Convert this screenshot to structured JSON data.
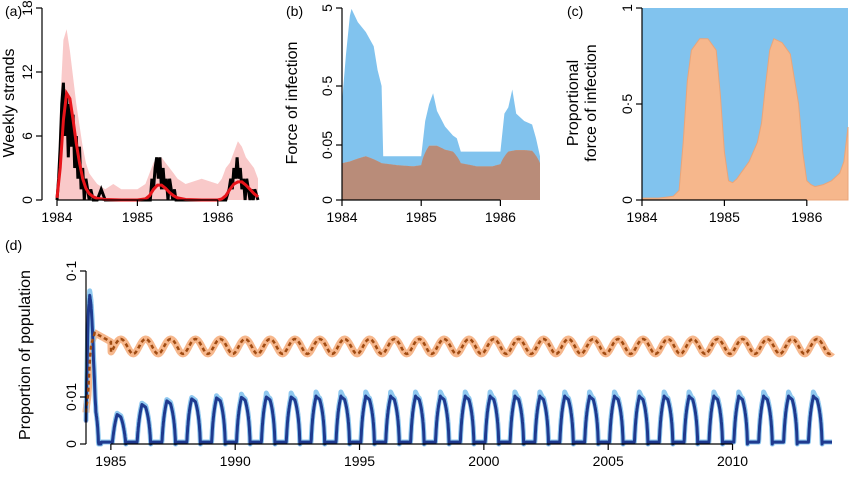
{
  "chart_data": [
    {
      "panel": "a",
      "type": "line",
      "panel_label": "(a)",
      "ylabel": "Weekly strands",
      "xlim": [
        1984,
        1986.5
      ],
      "ylim": [
        0,
        18
      ],
      "x_ticks": [
        1984,
        1985,
        1986
      ],
      "x_tick_labels": [
        "1984",
        "1985",
        "1986"
      ],
      "y_ticks": [
        0,
        6,
        12,
        18
      ],
      "y_tick_labels": [
        "0",
        "6",
        "12",
        "18"
      ],
      "colors": {
        "observed": "#000000",
        "fit": "#e8141a",
        "band": "#f9c9c9"
      },
      "series": [
        {
          "role": "observed",
          "x": [
            1984.0,
            1984.02,
            1984.04,
            1984.06,
            1984.08,
            1984.1,
            1984.12,
            1984.14,
            1984.16,
            1984.18,
            1984.2,
            1984.22,
            1984.24,
            1984.26,
            1984.28,
            1984.3,
            1984.32,
            1984.34,
            1984.36,
            1984.38,
            1984.4,
            1984.42,
            1984.45,
            1984.5,
            1984.55,
            1984.6,
            1984.7,
            1984.8,
            1984.9,
            1985.0,
            1985.1,
            1985.16,
            1985.18,
            1985.2,
            1985.22,
            1985.24,
            1985.26,
            1985.28,
            1985.3,
            1985.32,
            1985.34,
            1985.36,
            1985.38,
            1985.4,
            1985.42,
            1985.44,
            1985.46,
            1985.48,
            1985.5,
            1985.6,
            1985.8,
            1986.0,
            1986.1,
            1986.14,
            1986.16,
            1986.18,
            1986.2,
            1986.22,
            1986.24,
            1986.26,
            1986.28,
            1986.3,
            1986.32,
            1986.34,
            1986.36,
            1986.38,
            1986.4,
            1986.42,
            1986.44,
            1986.46,
            1986.5
          ],
          "values": [
            0,
            2,
            5,
            9,
            11,
            6,
            10,
            4,
            9,
            5,
            8,
            3,
            6,
            2,
            5,
            1,
            3,
            0,
            2,
            1,
            0,
            1,
            0,
            0,
            1,
            0,
            0,
            0,
            0,
            0,
            0,
            0,
            2,
            1,
            3,
            4,
            2,
            4,
            1,
            3,
            1,
            2,
            0,
            2,
            1,
            0,
            1,
            0,
            0,
            0,
            0,
            0,
            0,
            1,
            2,
            1,
            3,
            2,
            4,
            2,
            3,
            1,
            2,
            0,
            2,
            1,
            0,
            1,
            0,
            1,
            0
          ]
        },
        {
          "role": "fit",
          "x": [
            1984.0,
            1984.04,
            1984.08,
            1984.12,
            1984.16,
            1984.2,
            1984.24,
            1984.28,
            1984.32,
            1984.36,
            1984.4,
            1984.45,
            1984.5,
            1984.6,
            1984.8,
            1985.0,
            1985.1,
            1985.15,
            1985.2,
            1985.25,
            1985.3,
            1985.35,
            1985.4,
            1985.45,
            1985.5,
            1985.6,
            1985.8,
            1986.0,
            1986.05,
            1986.1,
            1986.15,
            1986.2,
            1986.25,
            1986.3,
            1986.35,
            1986.4,
            1986.45,
            1986.5
          ],
          "values": [
            0.2,
            3,
            7.5,
            10,
            9.5,
            7.5,
            5.3,
            3.5,
            2,
            1.1,
            0.6,
            0.3,
            0.15,
            0.05,
            0,
            0,
            0.1,
            0.4,
            1,
            1.4,
            1.4,
            1.1,
            0.7,
            0.4,
            0.2,
            0.05,
            0,
            0,
            0.1,
            0.4,
            1,
            1.5,
            1.7,
            1.7,
            1.4,
            1,
            0.6,
            0.3
          ]
        },
        {
          "role": "band-upper",
          "x": [
            1984.0,
            1984.04,
            1984.08,
            1984.12,
            1984.16,
            1984.2,
            1984.24,
            1984.28,
            1984.32,
            1984.36,
            1984.4,
            1984.45,
            1984.5,
            1984.6,
            1984.7,
            1984.8,
            1985.0,
            1985.1,
            1985.15,
            1985.2,
            1985.25,
            1985.3,
            1985.35,
            1985.4,
            1985.45,
            1985.5,
            1985.6,
            1985.8,
            1986.0,
            1986.05,
            1986.1,
            1986.15,
            1986.2,
            1986.25,
            1986.3,
            1986.35,
            1986.4,
            1986.45,
            1986.5
          ],
          "values": [
            1,
            9,
            15,
            16,
            14,
            11.5,
            9,
            7,
            5,
            3.5,
            2.5,
            2,
            1.5,
            1,
            1.5,
            1,
            1,
            1.5,
            2.5,
            3.5,
            4,
            4,
            3.5,
            3,
            2.5,
            2,
            1.5,
            2,
            1.5,
            2,
            3,
            3.5,
            4.5,
            5.5,
            5,
            4,
            3.5,
            3,
            2
          ]
        },
        {
          "role": "band-lower",
          "values": [
            0
          ]
        }
      ]
    },
    {
      "panel": "b",
      "type": "area",
      "panel_label": "(b)",
      "ylabel": "Force of infection",
      "xlim": [
        1984,
        1986.5
      ],
      "ylim_note": "axis shows a nonlinear (square-root-like) scale with ticks 0, 0·05, 0·5, 5",
      "x_ticks": [
        1984,
        1985,
        1986
      ],
      "x_tick_labels": [
        "1984",
        "1985",
        "1986"
      ],
      "y_ticks": [
        0,
        0.05,
        0.5,
        5
      ],
      "y_tick_labels": [
        "0",
        "0·05",
        "0·5",
        "5"
      ],
      "colors": {
        "blue": "#81c3ee",
        "orange": "#f6b78c",
        "overlap": "#b98c79"
      },
      "series": [
        {
          "role": "blue-area",
          "x": [
            1984.0,
            1984.05,
            1984.1,
            1984.12,
            1984.2,
            1984.3,
            1984.4,
            1984.45,
            1984.5,
            1984.52,
            1985.0,
            1985.05,
            1985.1,
            1985.15,
            1985.2,
            1985.3,
            1985.4,
            1985.45,
            1985.5,
            1986.0,
            1986.05,
            1986.1,
            1986.15,
            1986.2,
            1986.3,
            1986.4,
            1986.45,
            1986.5
          ],
          "values": [
            0.3,
            1.5,
            4.2,
            4.9,
            3.6,
            2.8,
            1.9,
            0.9,
            0.5,
            0.02,
            0.02,
            0.15,
            0.28,
            0.4,
            0.22,
            0.12,
            0.08,
            0.07,
            0.03,
            0.03,
            0.2,
            0.25,
            0.45,
            0.2,
            0.15,
            0.13,
            0.07,
            0.02
          ]
        },
        {
          "role": "orange-area",
          "x": [
            1984.0,
            1984.1,
            1984.2,
            1984.3,
            1984.4,
            1984.5,
            1984.7,
            1984.9,
            1985.0,
            1985.1,
            1985.2,
            1985.3,
            1985.4,
            1985.5,
            1985.7,
            1985.9,
            1986.0,
            1986.1,
            1986.2,
            1986.3,
            1986.4,
            1986.5
          ],
          "values": [
            0.01,
            0.012,
            0.016,
            0.02,
            0.015,
            0.01,
            0.008,
            0.007,
            0.008,
            0.047,
            0.047,
            0.035,
            0.03,
            0.01,
            0.007,
            0.007,
            0.009,
            0.03,
            0.034,
            0.034,
            0.032,
            0.01
          ]
        }
      ]
    },
    {
      "panel": "c",
      "type": "area",
      "panel_label": "(c)",
      "ylabel": "Proportional force of infection",
      "ylabel_lines": [
        "Proportional",
        "force of infection"
      ],
      "xlim": [
        1984,
        1986.5
      ],
      "ylim": [
        0,
        1
      ],
      "x_ticks": [
        1984,
        1985,
        1986
      ],
      "x_tick_labels": [
        "1984",
        "1985",
        "1986"
      ],
      "y_ticks": [
        0,
        0.5,
        1
      ],
      "y_tick_labels": [
        "0",
        "0·5",
        "1"
      ],
      "colors": {
        "blue": "#81c3ee",
        "orange": "#f6b78c"
      },
      "series": [
        {
          "role": "orange-share",
          "x": [
            1984.0,
            1984.1,
            1984.2,
            1984.3,
            1984.38,
            1984.45,
            1984.5,
            1984.55,
            1984.6,
            1984.7,
            1984.8,
            1984.9,
            1984.95,
            1985.0,
            1985.05,
            1985.1,
            1985.15,
            1985.2,
            1985.3,
            1985.4,
            1985.45,
            1985.5,
            1985.55,
            1985.6,
            1985.7,
            1985.8,
            1985.9,
            1985.95,
            1986.0,
            1986.05,
            1986.1,
            1986.2,
            1986.3,
            1986.4,
            1986.45,
            1986.5
          ],
          "values": [
            0.01,
            0.01,
            0.01,
            0.015,
            0.02,
            0.05,
            0.3,
            0.62,
            0.78,
            0.84,
            0.84,
            0.78,
            0.55,
            0.25,
            0.1,
            0.09,
            0.11,
            0.14,
            0.2,
            0.3,
            0.4,
            0.6,
            0.78,
            0.84,
            0.82,
            0.76,
            0.5,
            0.25,
            0.1,
            0.08,
            0.07,
            0.08,
            0.1,
            0.14,
            0.2,
            0.38
          ]
        }
      ]
    },
    {
      "panel": "d",
      "type": "line",
      "panel_label": "(d)",
      "ylabel": "Proportion of population",
      "xlim": [
        1984,
        2014
      ],
      "scale_note": "y axis is nonlinear (log-like) with ticks 0, 0·01, 0·1",
      "x_ticks": [
        1985,
        1990,
        1995,
        2000,
        2005,
        2010
      ],
      "x_tick_labels": [
        "1985",
        "1990",
        "1995",
        "2000",
        "2005",
        "2010"
      ],
      "y_ticks": [
        0,
        0.01,
        0.1
      ],
      "y_tick_labels": [
        "0",
        "0·01",
        "0·1"
      ],
      "colors": {
        "blue": "#1f3a8f",
        "blue_band": "#8fc8ef",
        "orange_dash": "#a04b12",
        "orange_band": "#f6b78c"
      },
      "series": [
        {
          "role": "blue-seasonal",
          "pattern": "initial epidemic peak about 0·065 in early 1984, collapses to ~0 by 1984.5, then annual pulses peaking each spring",
          "x": [
            1984.0,
            1984.05,
            1984.1,
            1984.15,
            1984.2,
            1984.3,
            1984.4,
            1984.5,
            1985.0,
            1985.15,
            1985.35,
            1985.55,
            1986.0,
            1986.15,
            1986.35,
            1986.55
          ],
          "values": [
            0.002,
            0.02,
            0.05,
            0.065,
            0.055,
            0.02,
            0.004,
            0.0001,
            0.0001,
            0.0035,
            0.002,
            0.0001,
            0.0001,
            0.006,
            0.004,
            0.0001
          ],
          "annual_peak_values": [
            0.0035,
            0.0065,
            0.008,
            0.009,
            0.0095,
            0.0098,
            0.01,
            0.01,
            0.0102,
            0.0102,
            0.0102,
            0.0102,
            0.0102,
            0.0102,
            0.0102,
            0.0102,
            0.0102,
            0.0102,
            0.0102,
            0.0102,
            0.0102,
            0.0102,
            0.0102,
            0.0102,
            0.0102,
            0.0102,
            0.0102,
            0.0102,
            0.0102
          ],
          "annual_peak_years": [
            1985.2,
            1986.2,
            1987.2,
            1988.2,
            1989.2,
            1990.2,
            1991.2,
            1992.2,
            1993.2,
            1994.2,
            1995.2,
            1996.2,
            1997.2,
            1998.2,
            1999.2,
            2000.2,
            2001.2,
            2002.2,
            2003.2,
            2004.2,
            2005.2,
            2006.2,
            2007.2,
            2008.2,
            2009.2,
            2010.2,
            2011.2,
            2012.2,
            2013.2
          ]
        },
        {
          "role": "orange-dashed",
          "pattern": "rises to ~0·03 in 1984, then oscillates annually between about 0·022 and 0·030",
          "x": [
            1984.0,
            1984.1,
            1984.2,
            1984.35,
            1984.6,
            1985.0
          ],
          "values": [
            0.004,
            0.012,
            0.026,
            0.033,
            0.031,
            0.028
          ],
          "oscillation_min": 0.0225,
          "oscillation_max": 0.0295,
          "period_years": 1
        }
      ]
    }
  ]
}
